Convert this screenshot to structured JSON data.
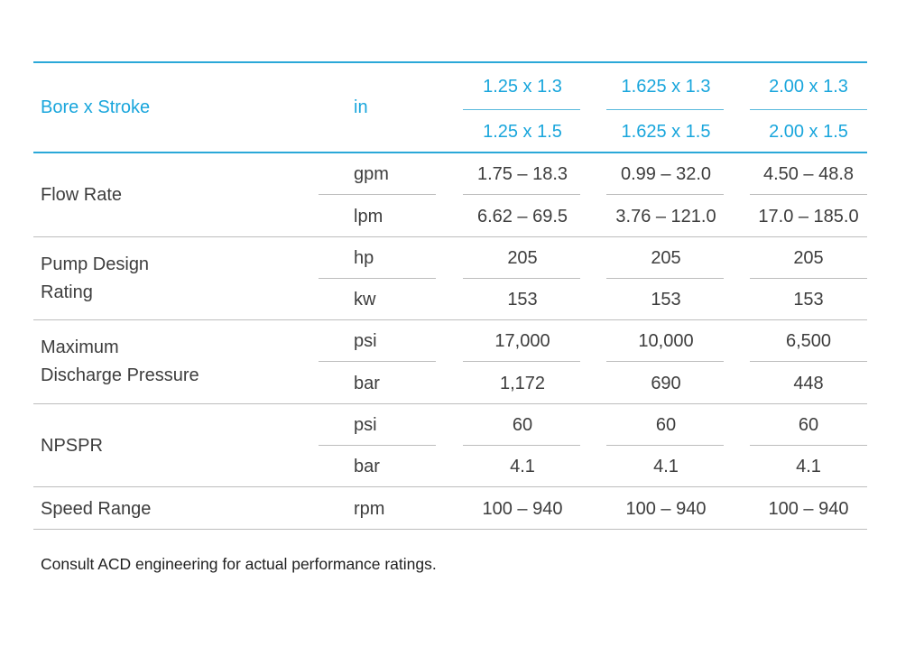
{
  "header": {
    "label": "Bore x Stroke",
    "unit": "in",
    "col1": [
      "1.25 x 1.3",
      "1.25 x 1.5"
    ],
    "col2": [
      "1.625 x 1.3",
      "1.625 x 1.5"
    ],
    "col3": [
      "2.00 x 1.3",
      "2.00 x 1.5"
    ]
  },
  "rows": [
    {
      "label": "Flow Rate",
      "sub": [
        {
          "unit": "gpm",
          "values": [
            "1.75 – 18.3",
            "0.99 – 32.0",
            "4.50 – 48.8"
          ]
        },
        {
          "unit": "lpm",
          "values": [
            "6.62 – 69.5",
            "3.76 – 121.0",
            "17.0 – 185.0"
          ]
        }
      ]
    },
    {
      "label_lines": [
        "Pump Design",
        "Rating"
      ],
      "sub": [
        {
          "unit": "hp",
          "values": [
            "205",
            "205",
            "205"
          ]
        },
        {
          "unit": "kw",
          "values": [
            "153",
            "153",
            "153"
          ]
        }
      ]
    },
    {
      "label_lines": [
        "Maximum",
        "Discharge Pressure"
      ],
      "sub": [
        {
          "unit": "psi",
          "values": [
            "17,000",
            "10,000",
            "6,500"
          ]
        },
        {
          "unit": "bar",
          "values": [
            "1,172",
            "690",
            "448"
          ]
        }
      ]
    },
    {
      "label": "NPSPR",
      "sub": [
        {
          "unit": "psi",
          "values": [
            "60",
            "60",
            "60"
          ]
        },
        {
          "unit": "bar",
          "values": [
            "4.1",
            "4.1",
            "4.1"
          ]
        }
      ]
    },
    {
      "label": "Speed Range",
      "sub": [
        {
          "unit": "rpm",
          "values": [
            "100 – 940",
            "100 – 940",
            "100 – 940"
          ]
        }
      ]
    }
  ],
  "footnote": "Consult ACD engineering for actual performance ratings.",
  "colors": {
    "accent": "#19a6dc",
    "text": "#3d3d3d",
    "rule": "#bdbdbd"
  }
}
